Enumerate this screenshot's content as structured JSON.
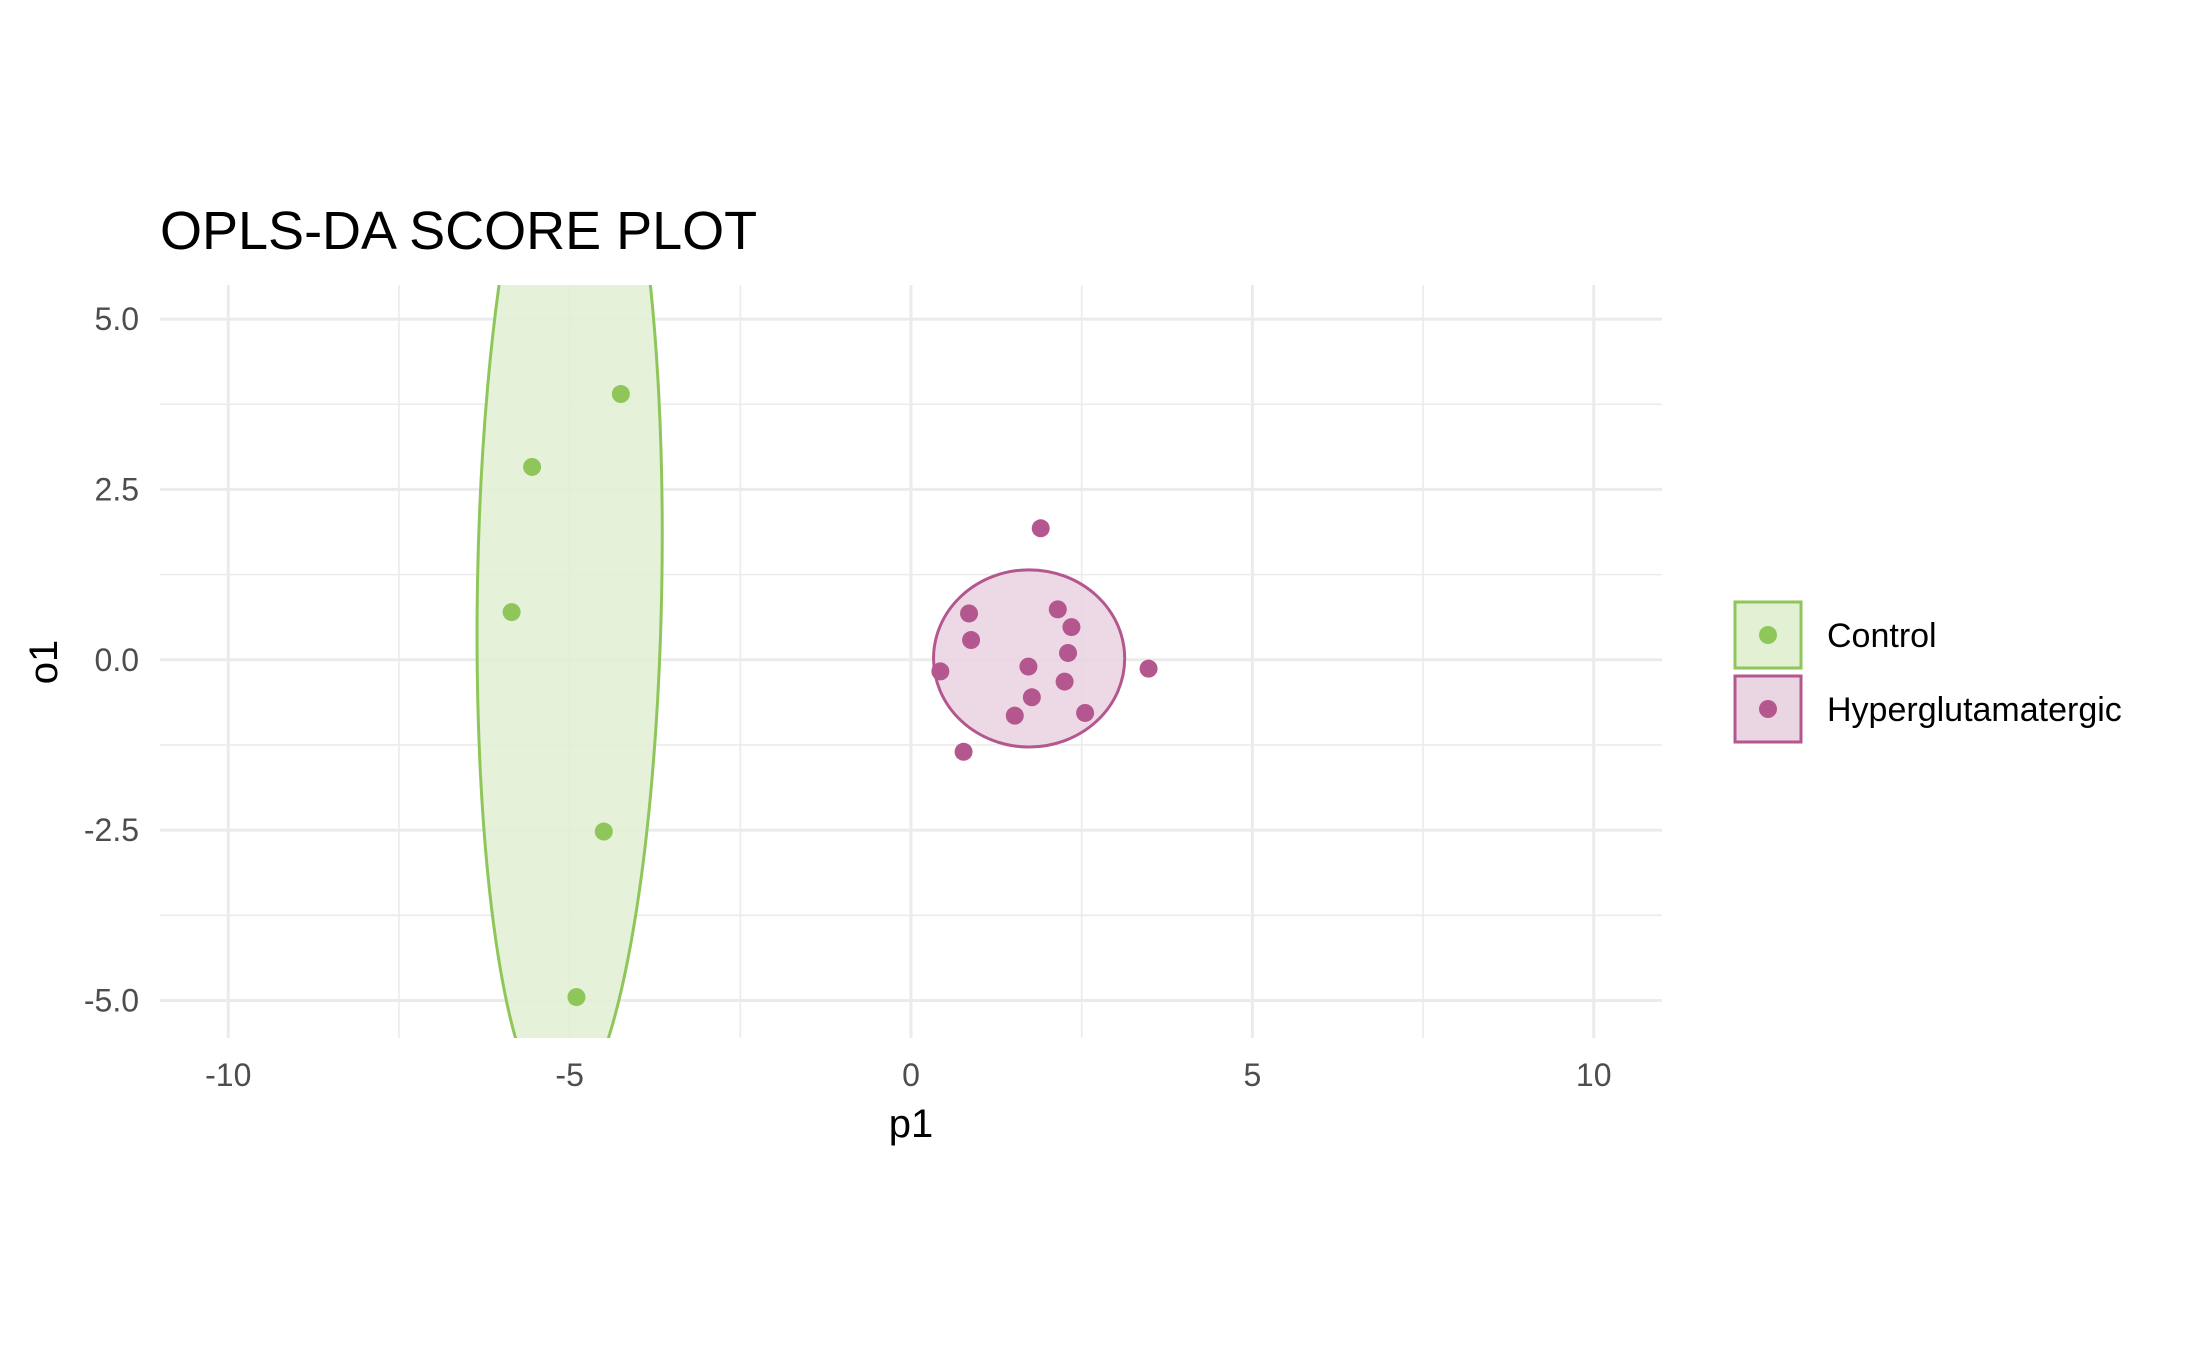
{
  "chart_data": {
    "type": "scatter",
    "title": "OPLS-DA SCORE PLOT",
    "xlabel": "p1",
    "ylabel": "o1",
    "xlim": [
      -11,
      11
    ],
    "ylim": [
      -5.55,
      5.5
    ],
    "x_ticks": [
      -10,
      -5,
      0,
      5,
      10
    ],
    "x_tick_labels": [
      "-10",
      "-5",
      "0",
      "5",
      "10"
    ],
    "y_ticks": [
      -5.0,
      -2.5,
      0.0,
      2.5,
      5.0
    ],
    "y_tick_labels": [
      "-5.0",
      "-2.5",
      "0.0",
      "2.5",
      "5.0"
    ],
    "grid": true,
    "legend_position": "right",
    "series": [
      {
        "name": "Control",
        "color": "#8fc65a",
        "fill": "#e2f0d4",
        "points": [
          {
            "x": -4.25,
            "y": 3.9
          },
          {
            "x": -5.55,
            "y": 2.83
          },
          {
            "x": -5.85,
            "y": 0.7
          },
          {
            "x": -4.5,
            "y": -2.52
          },
          {
            "x": -4.9,
            "y": -4.95
          }
        ],
        "ellipse": {
          "cx": -5.0,
          "cy": 1.1,
          "rx": 1.35,
          "ry": 7.7,
          "rotation_deg": 1
        }
      },
      {
        "name": "Hyperglutamatergic",
        "color": "#b5578f",
        "fill": "#ead5e2",
        "points": [
          {
            "x": 1.9,
            "y": 1.93
          },
          {
            "x": 0.85,
            "y": 0.68
          },
          {
            "x": 2.15,
            "y": 0.74
          },
          {
            "x": 2.35,
            "y": 0.48
          },
          {
            "x": 0.88,
            "y": 0.29
          },
          {
            "x": 2.3,
            "y": 0.1
          },
          {
            "x": 1.72,
            "y": -0.1
          },
          {
            "x": 3.48,
            "y": -0.13
          },
          {
            "x": 0.43,
            "y": -0.17
          },
          {
            "x": 2.25,
            "y": -0.32
          },
          {
            "x": 1.77,
            "y": -0.55
          },
          {
            "x": 1.52,
            "y": -0.82
          },
          {
            "x": 2.55,
            "y": -0.78
          },
          {
            "x": 0.77,
            "y": -1.35
          }
        ],
        "ellipse": {
          "cx": 1.73,
          "cy": 0.02,
          "rx": 1.4,
          "ry": 1.3,
          "rotation_deg": 0
        }
      }
    ]
  }
}
